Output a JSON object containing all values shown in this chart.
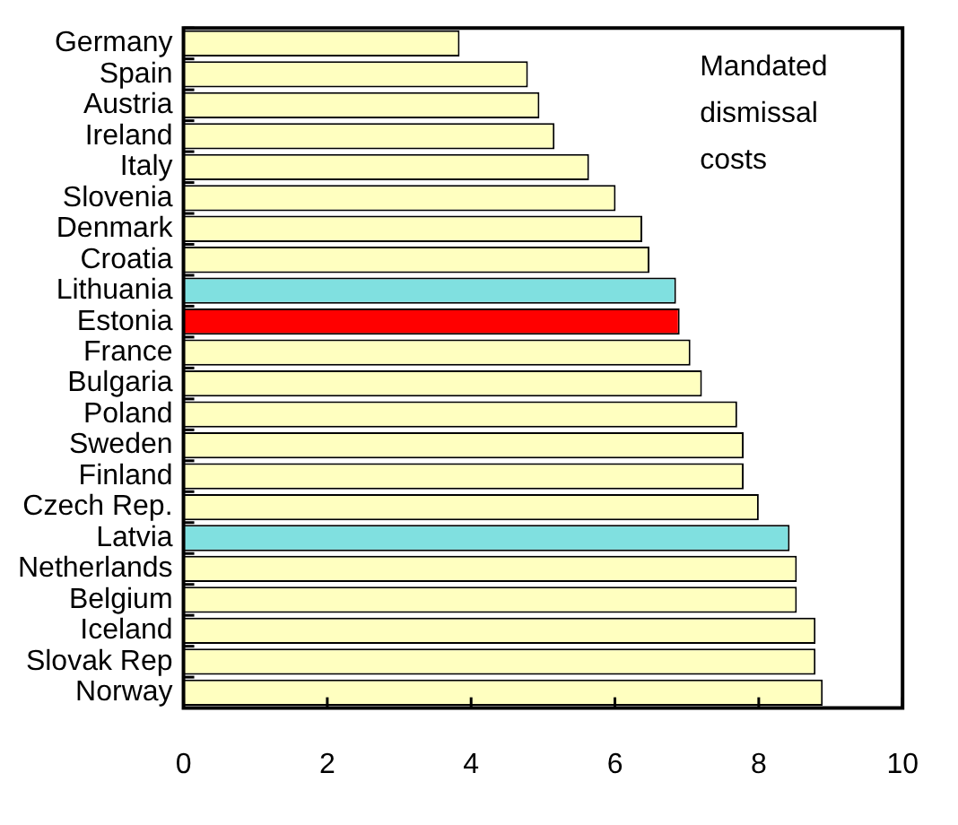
{
  "chart_data": {
    "type": "bar",
    "orientation": "horizontal",
    "categories": [
      "Germany",
      "Spain",
      "Austria",
      "Ireland",
      "Italy",
      "Slovenia",
      "Denmark",
      "Croatia",
      "Lithuania",
      "Estonia",
      "France",
      "Bulgaria",
      "Poland",
      "Sweden",
      "Finland",
      "Czech Rep.",
      "Latvia",
      "Netherlands",
      "Belgium",
      "Iceland",
      "Slovak Rep",
      "Norway"
    ],
    "values": [
      3.84,
      4.79,
      4.95,
      5.16,
      5.64,
      6.01,
      6.38,
      6.48,
      6.85,
      6.9,
      7.05,
      7.21,
      7.7,
      7.79,
      7.79,
      8.0,
      8.43,
      8.53,
      8.53,
      8.79,
      8.79,
      8.89
    ],
    "colors": [
      "#ffffc0",
      "#ffffc0",
      "#ffffc0",
      "#ffffc0",
      "#ffffc0",
      "#ffffc0",
      "#ffffc0",
      "#ffffc0",
      "#80e0e0",
      "#ff0000",
      "#ffffc0",
      "#ffffc0",
      "#ffffc0",
      "#ffffc0",
      "#ffffc0",
      "#ffffc0",
      "#80e0e0",
      "#ffffc0",
      "#ffffc0",
      "#ffffc0",
      "#ffffc0",
      "#ffffc0"
    ],
    "xlim": [
      0,
      10
    ],
    "xticks": [
      0,
      2,
      4,
      6,
      8,
      10
    ],
    "annotations": [
      "Mandated dismissal costs"
    ]
  }
}
